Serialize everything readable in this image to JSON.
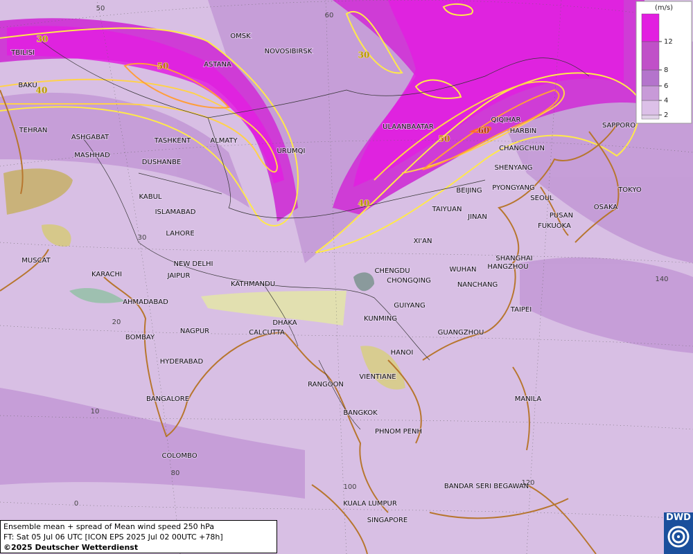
{
  "map": {
    "cities": [
      "TBILISI",
      "BAKU",
      "OMSK",
      "NOVOSIBIRSK",
      "ASTANA",
      "TEHRAN",
      "ASHGABAT",
      "MASHHAD",
      "TASHKENT",
      "ALMATY",
      "DUSHANBE",
      "URUMQI",
      "ULAANBAATAR",
      "QIQIHAR",
      "HARBIN",
      "CHANGCHUN",
      "SAPPORO",
      "SHENYANG",
      "BEIJING",
      "PYONGYANG",
      "SEOUL",
      "TOKYO",
      "OSAKA",
      "PUSAN",
      "FUKUOKA",
      "TAIYUAN",
      "JINAN",
      "KABUL",
      "ISLAMABAD",
      "LAHORE",
      "XI'AN",
      "SHANGHAI",
      "HANGZHOU",
      "WUHAN",
      "NANCHANG",
      "CHENGDU",
      "CHONGQING",
      "NEW DELHI",
      "JAIPUR",
      "KATHMANDU",
      "MUSCAT",
      "KARACHI",
      "AHMADABAD",
      "GUIYANG",
      "TAIPEI",
      "KUNMING",
      "NAGPUR",
      "DHAKA",
      "CALCUTTA",
      "GUANGZHOU",
      "BOMBAY",
      "HANOI",
      "HYDERABAD",
      "VIENTIANE",
      "RANGOON",
      "BANGALORE",
      "MANILA",
      "BANGKOK",
      "PHNOM PENH",
      "COLOMBO",
      "BANDAR SERI BEGAWAN",
      "KUALA LUMPUR",
      "SINGAPORE"
    ],
    "grid_labels": [
      50,
      60,
      30,
      20,
      10,
      0,
      80,
      100,
      120,
      140
    ],
    "contour_labels": [
      30,
      50,
      40,
      30,
      50,
      60,
      40
    ]
  },
  "legend": {
    "unit": "(m/s)",
    "ticks": [
      2,
      4,
      6,
      8,
      12
    ],
    "colors": [
      "#e0d0e8",
      "#dcc0e8",
      "#c89ad8",
      "#b474cc",
      "#c050c8",
      "#e21fe0"
    ]
  },
  "footer": {
    "line1": "Ensemble mean + spread of Mean wind speed 250 hPa",
    "line2": "FT: Sat 05 Jul 06 UTC [ICON EPS 2025 Jul 02 00UTC +78h]",
    "line3": "©2025 Deutscher Wetterdienst"
  },
  "logo": "DWD"
}
